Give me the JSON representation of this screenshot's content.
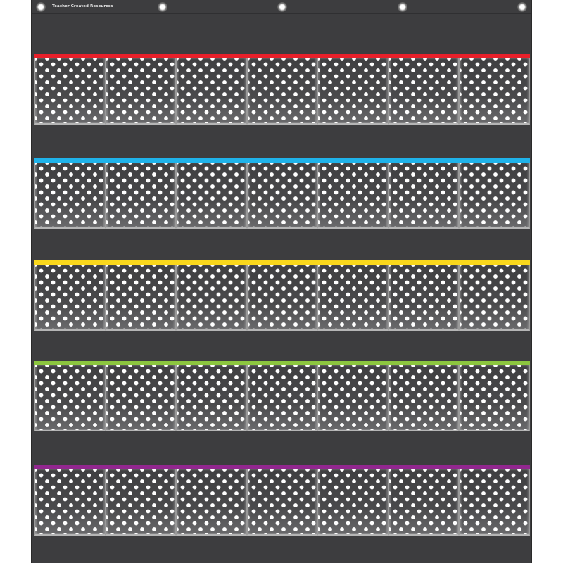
{
  "brand": "Teacher Created Resources",
  "chart_color": "#3d3d3f",
  "pockets_per_row": 7,
  "rows": [
    {
      "stripe_color": "#e8202a"
    },
    {
      "stripe_color": "#1fb3ea"
    },
    {
      "stripe_color": "#f9d71c"
    },
    {
      "stripe_color": "#8cc63f"
    },
    {
      "stripe_color": "#92278f"
    }
  ]
}
